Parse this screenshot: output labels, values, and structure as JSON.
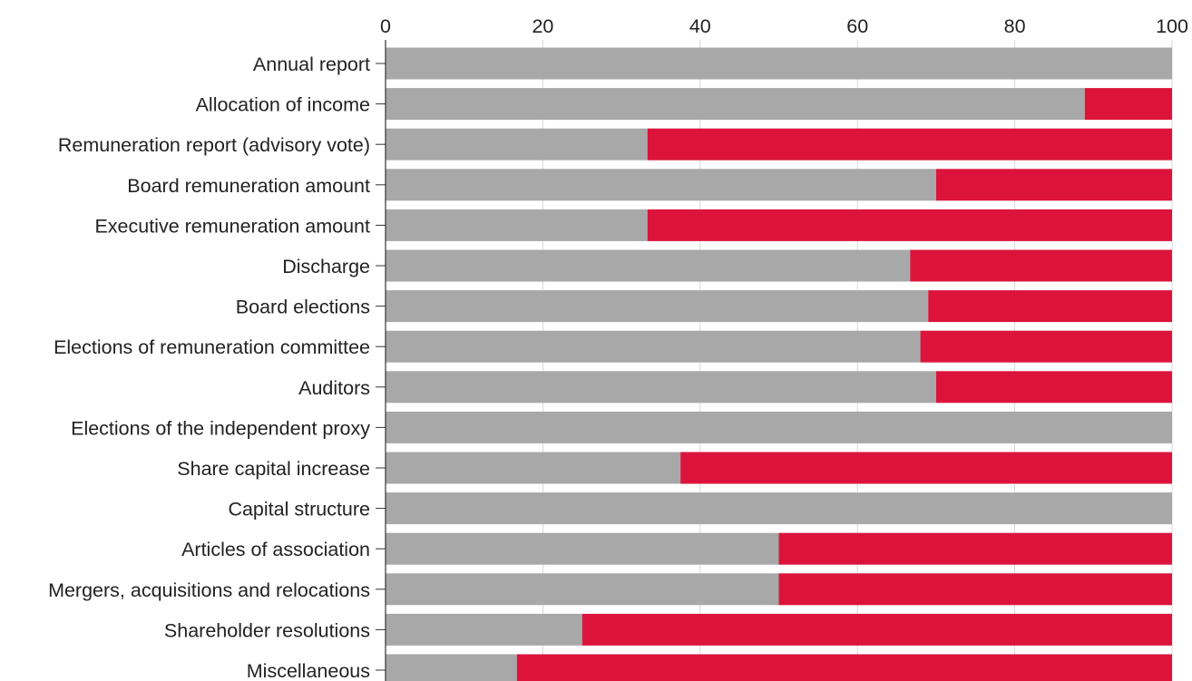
{
  "chart_data": {
    "type": "bar",
    "stacked": true,
    "orientation": "horizontal",
    "title": "",
    "xlabel": "",
    "ylabel": "",
    "xlim": [
      0,
      100
    ],
    "x_ticks": [
      0,
      20,
      40,
      60,
      80,
      100
    ],
    "x_tick_labels": [
      "0",
      "20",
      "40",
      "60",
      "80",
      "100"
    ],
    "axis_position": "top",
    "grid": true,
    "legend": "none",
    "categories": [
      "Annual report",
      "Allocation of income",
      "Remuneration report (advisory vote)",
      "Board remuneration amount",
      "Executive remuneration amount",
      "Discharge",
      "Board elections",
      "Elections of remuneration committee",
      "Auditors",
      "Elections of the independent proxy",
      "Share capital increase",
      "Capital structure",
      "Articles of association",
      "Mergers, acquisitions and relocations",
      "Shareholder resolutions",
      "Miscellaneous"
    ],
    "series": [
      {
        "color": "#a8a8a8",
        "values": [
          100,
          88.9,
          33.3,
          70,
          33.3,
          66.7,
          69,
          68,
          70,
          100,
          37.5,
          100,
          50,
          50,
          25,
          16.7
        ]
      },
      {
        "color": "#dc143c",
        "values": [
          0,
          11.1,
          66.7,
          30,
          66.7,
          33.3,
          31,
          32,
          30,
          0,
          62.5,
          0,
          50,
          50,
          75,
          83.3
        ]
      }
    ]
  }
}
